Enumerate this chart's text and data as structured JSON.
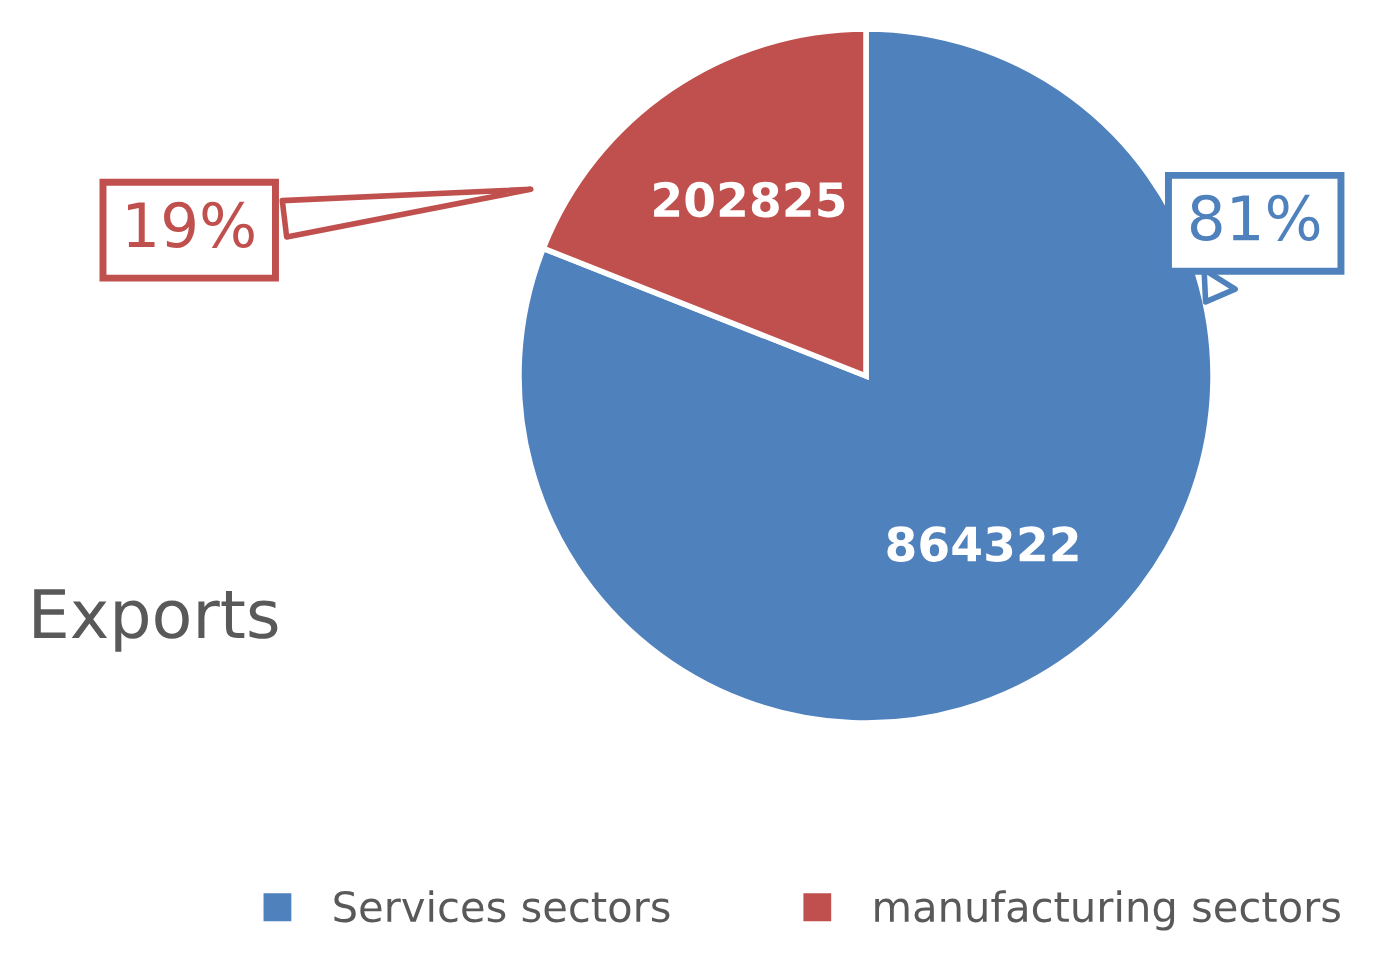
{
  "chart_data": {
    "type": "pie",
    "categories": [
      "Services sectors",
      "manufacturing sectors"
    ],
    "values": [
      864322,
      202825
    ],
    "colors": [
      "#4f81bd",
      "#c0504d"
    ],
    "data_labels": true,
    "legend": "bottom",
    "annotations": [
      "81%",
      "19%",
      "Exports"
    ]
  }
}
